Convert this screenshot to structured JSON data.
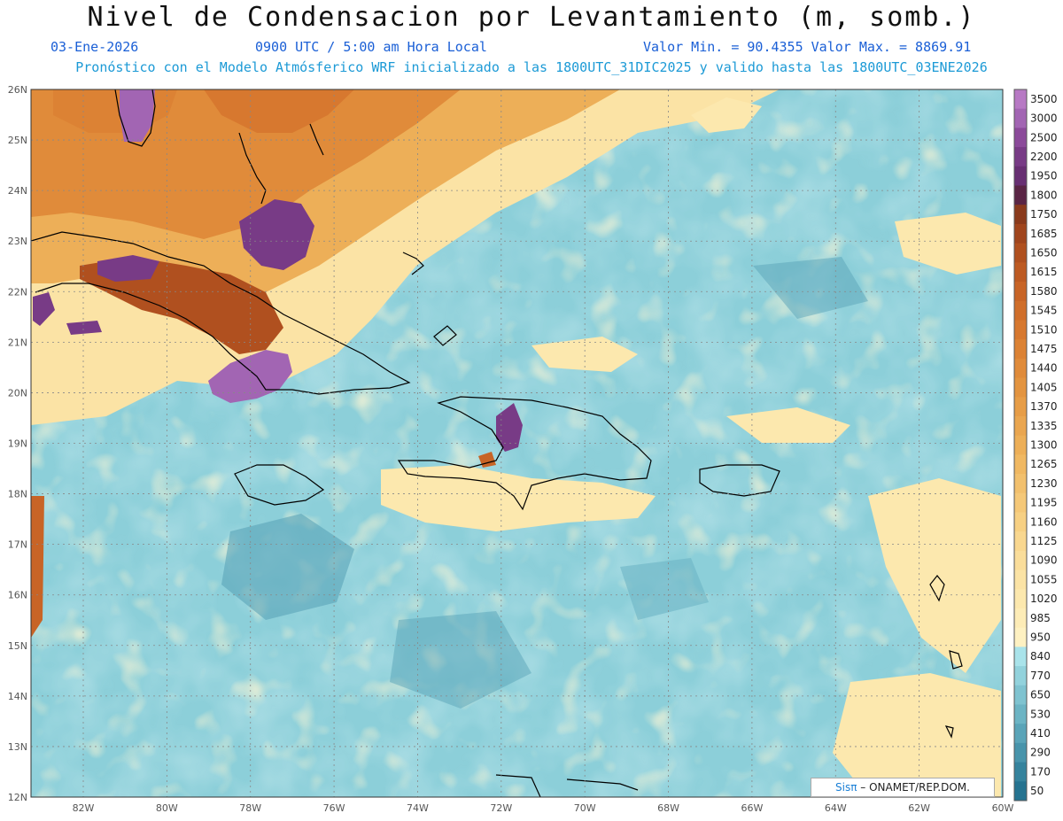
{
  "title": "Nivel de Condensacion por Levantamiento (m, somb.)",
  "date": "03-Ene-2026",
  "time": "0900 UTC / 5:00 am Hora Local",
  "minmax": "Valor Min. = 90.4355  Valor Max. = 8869.91",
  "forecast": "Pronóstico con el Modelo Atmósferico WRF inicializado a las 1800UTC_31DIC2025 y valido hasta las  1800UTC_03ENE2026",
  "credit_sis": "Sisπ",
  "credit_rest": "– ONAMET/REP.DOM.",
  "lat_labels": [
    "26N",
    "25N",
    "24N",
    "23N",
    "22N",
    "21N",
    "20N",
    "19N",
    "18N",
    "17N",
    "16N",
    "15N",
    "14N",
    "13N",
    "12N"
  ],
  "lon_labels": [
    "82W",
    "80W",
    "78W",
    "76W",
    "74W",
    "72W",
    "70W",
    "68W",
    "66W",
    "64W",
    "62W",
    "60W"
  ],
  "colorbar": [
    {
      "label": "3500",
      "color": "#b779c4"
    },
    {
      "label": "3000",
      "color": "#a265b3"
    },
    {
      "label": "2500",
      "color": "#8b4a9a"
    },
    {
      "label": "2200",
      "color": "#783b86"
    },
    {
      "label": "1950",
      "color": "#682f73"
    },
    {
      "label": "1800",
      "color": "#5a2545"
    },
    {
      "label": "1750",
      "color": "#8a3a1c"
    },
    {
      "label": "1685",
      "color": "#a0451d"
    },
    {
      "label": "1650",
      "color": "#b0501f"
    },
    {
      "label": "1615",
      "color": "#bd5a22"
    },
    {
      "label": "1580",
      "color": "#c86426"
    },
    {
      "label": "1545",
      "color": "#d06e2a"
    },
    {
      "label": "1510",
      "color": "#d7782f"
    },
    {
      "label": "1475",
      "color": "#dc8234"
    },
    {
      "label": "1440",
      "color": "#e08b3a"
    },
    {
      "label": "1405",
      "color": "#e39440"
    },
    {
      "label": "1370",
      "color": "#e79d47"
    },
    {
      "label": "1335",
      "color": "#eaa650"
    },
    {
      "label": "1300",
      "color": "#edaf58"
    },
    {
      "label": "1265",
      "color": "#f0b862"
    },
    {
      "label": "1230",
      "color": "#f2c06d"
    },
    {
      "label": "1195",
      "color": "#f5c878"
    },
    {
      "label": "1160",
      "color": "#f7d083"
    },
    {
      "label": "1125",
      "color": "#f9d78f"
    },
    {
      "label": "1090",
      "color": "#fadd9a"
    },
    {
      "label": "1055",
      "color": "#fbe3a5"
    },
    {
      "label": "1020",
      "color": "#fce8ae"
    },
    {
      "label": "985",
      "color": "#fdecb7"
    },
    {
      "label": "950",
      "color": "#fef1c2"
    },
    {
      "label": "840",
      "color": "#a9e3ea"
    },
    {
      "label": "770",
      "color": "#92d2dc"
    },
    {
      "label": "650",
      "color": "#7fc3d0"
    },
    {
      "label": "530",
      "color": "#6cb4c4"
    },
    {
      "label": "410",
      "color": "#5aa4b8"
    },
    {
      "label": "290",
      "color": "#4894ab"
    },
    {
      "label": "170",
      "color": "#35839d"
    },
    {
      "label": "50",
      "color": "#257390"
    }
  ]
}
